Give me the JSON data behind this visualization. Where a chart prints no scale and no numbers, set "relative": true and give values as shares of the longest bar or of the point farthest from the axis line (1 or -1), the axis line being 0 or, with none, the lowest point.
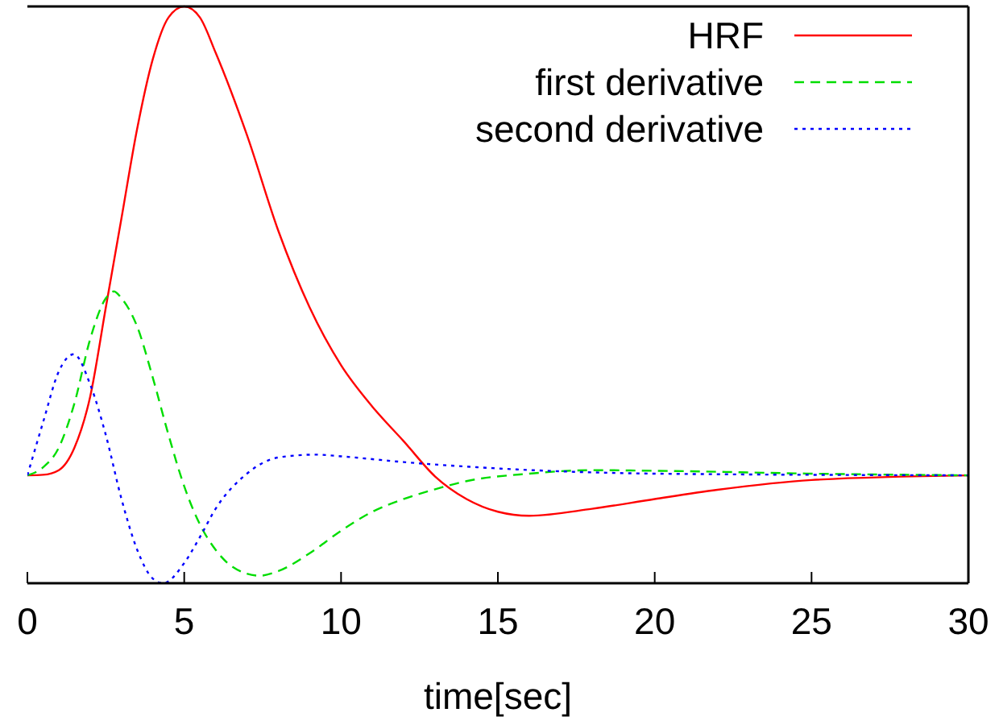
{
  "chart_data": {
    "type": "line",
    "relative": true,
    "xlabel": "time[sec]",
    "xlim": [
      0,
      30
    ],
    "xticks": [
      0,
      5,
      10,
      15,
      20,
      25,
      30
    ],
    "grid": false,
    "legend": "top right",
    "marker": "none",
    "series": [
      {
        "name": "HRF",
        "color": "#ff0000",
        "line_style": "solid",
        "x": [
          0,
          0.5,
          1,
          1.5,
          2,
          2.5,
          3,
          3.5,
          4,
          4.5,
          5,
          5.5,
          6,
          7,
          8,
          9,
          10,
          11,
          12,
          13,
          14,
          15,
          16,
          18,
          20,
          22,
          25,
          30
        ],
        "values": [
          0.187,
          0.188,
          0.196,
          0.235,
          0.323,
          0.478,
          0.633,
          0.788,
          0.909,
          0.981,
          1,
          0.981,
          0.92,
          0.777,
          0.611,
          0.478,
          0.378,
          0.306,
          0.246,
          0.185,
          0.146,
          0.124,
          0.117,
          0.129,
          0.146,
          0.162,
          0.179,
          0.187
        ]
      },
      {
        "name": "first derivative",
        "color": "#00dd00",
        "line_style": "dashed",
        "x": [
          0,
          0.5,
          1,
          1.5,
          2,
          2.5,
          2.76,
          3,
          3.5,
          4,
          4.5,
          5,
          5.5,
          6,
          6.5,
          7.4,
          8,
          9,
          10,
          11,
          12,
          13,
          14,
          16,
          18,
          20,
          25,
          30
        ],
        "values": [
          0.187,
          0.201,
          0.235,
          0.312,
          0.423,
          0.494,
          0.506,
          0.494,
          0.445,
          0.356,
          0.257,
          0.168,
          0.102,
          0.058,
          0.03,
          0.013,
          0.021,
          0.052,
          0.091,
          0.124,
          0.146,
          0.163,
          0.177,
          0.19,
          0.196,
          0.195,
          0.19,
          0.187
        ]
      },
      {
        "name": "second derivative",
        "color": "#0000ff",
        "line_style": "dotted",
        "x": [
          0,
          0.5,
          1,
          1.48,
          2,
          2.5,
          3,
          3.5,
          4,
          4.33,
          5,
          5.5,
          6,
          7,
          8,
          9.2,
          10,
          12,
          15,
          20,
          30
        ],
        "values": [
          0.187,
          0.279,
          0.367,
          0.397,
          0.345,
          0.257,
          0.146,
          0.058,
          0.008,
          0,
          0.035,
          0.08,
          0.129,
          0.19,
          0.218,
          0.223,
          0.22,
          0.21,
          0.199,
          0.19,
          0.187
        ]
      }
    ]
  }
}
